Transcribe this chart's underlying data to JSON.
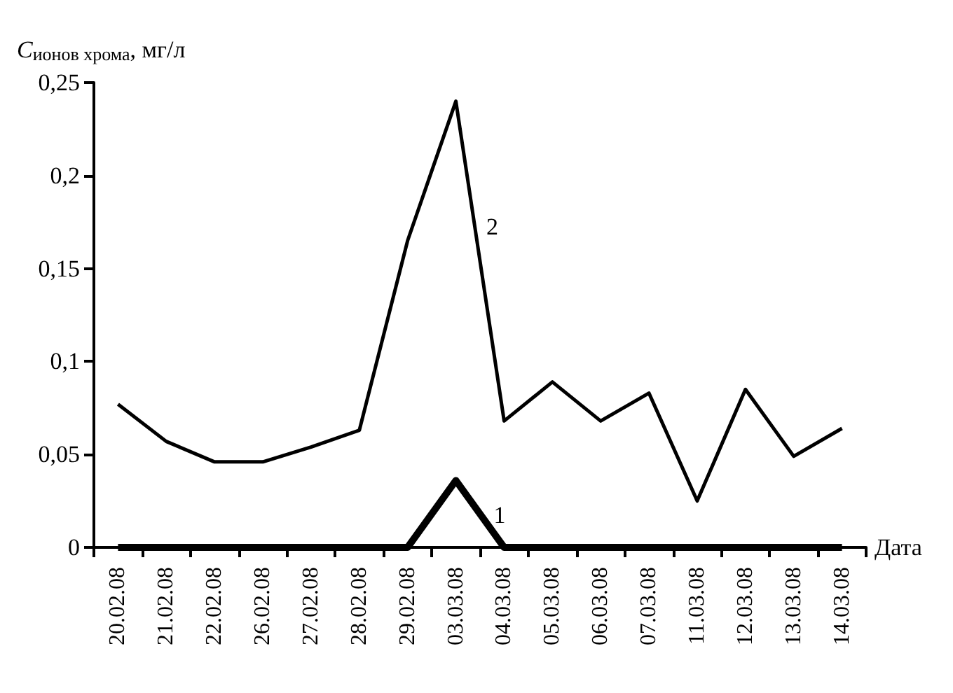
{
  "chart_data": {
    "type": "line",
    "ylabel": "C$_{ионов хрома}$, мг/л",
    "xlabel": "Дата",
    "categories": [
      "20.02.08",
      "21.02.08",
      "22.02.08",
      "26.02.08",
      "27.02.08",
      "28.02.08",
      "29.02.08",
      "03.03.08",
      "04.03.08",
      "05.03.08",
      "06.03.08",
      "07.03.08",
      "11.03.08",
      "12.03.08",
      "13.03.08",
      "14.03.08"
    ],
    "series": [
      {
        "name": "1",
        "color": "#000000",
        "values": [
          0,
          0,
          0,
          0,
          0,
          0,
          0,
          0.036,
          0,
          0,
          0,
          0,
          0,
          0,
          0,
          0
        ]
      },
      {
        "name": "2",
        "color": "#000000",
        "values": [
          0.077,
          0.057,
          0.046,
          0.046,
          0.054,
          0.063,
          0.165,
          0.24,
          0.068,
          0.089,
          0.068,
          0.083,
          0.025,
          0.085,
          0.049,
          0.064
        ]
      }
    ],
    "ylim": [
      0,
      0.25
    ],
    "yticks": [
      0,
      {
        "value": 0.05,
        "label": "0,05"
      },
      {
        "value": 0.1,
        "label": "0,1"
      },
      {
        "value": 0.15,
        "label": "0,15"
      },
      {
        "value": 0.2,
        "label": "0,2"
      },
      {
        "value": 0.25,
        "label": "0,25"
      }
    ],
    "grid": false,
    "legend": false,
    "marker": "none",
    "line_style": "solid"
  }
}
